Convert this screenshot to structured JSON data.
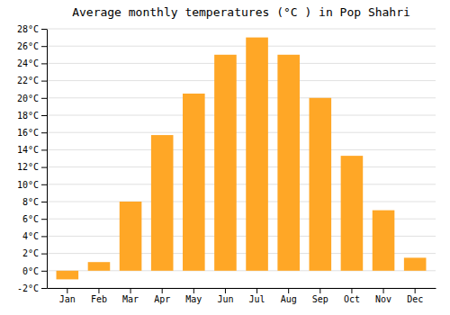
{
  "chart_data": {
    "type": "bar",
    "title": "Average monthly temperatures (°C ) in Pop Shahri",
    "categories": [
      "Jan",
      "Feb",
      "Mar",
      "Apr",
      "May",
      "Jun",
      "Jul",
      "Aug",
      "Sep",
      "Oct",
      "Nov",
      "Dec"
    ],
    "values": [
      -1.0,
      1.0,
      8.0,
      15.7,
      20.5,
      25.0,
      27.0,
      25.0,
      20.0,
      13.3,
      7.0,
      1.5
    ],
    "color": "#FFA726",
    "ylim": [
      -2,
      28
    ],
    "yticks": [
      {
        "value": -2,
        "label": "-2°C"
      },
      {
        "value": 0,
        "label": "0°C"
      },
      {
        "value": 2,
        "label": "2°C"
      },
      {
        "value": 4,
        "label": "4°C"
      },
      {
        "value": 6,
        "label": "6°C"
      },
      {
        "value": 8,
        "label": "8°C"
      },
      {
        "value": 10,
        "label": "10°C"
      },
      {
        "value": 12,
        "label": "12°C"
      },
      {
        "value": 14,
        "label": "14°C"
      },
      {
        "value": 16,
        "label": "16°C"
      },
      {
        "value": 18,
        "label": "18°C"
      },
      {
        "value": 20,
        "label": "20°C"
      },
      {
        "value": 22,
        "label": "22°C"
      },
      {
        "value": 24,
        "label": "24°C"
      },
      {
        "value": 26,
        "label": "26°C"
      },
      {
        "value": 28,
        "label": "28°C"
      }
    ],
    "grid": true
  }
}
